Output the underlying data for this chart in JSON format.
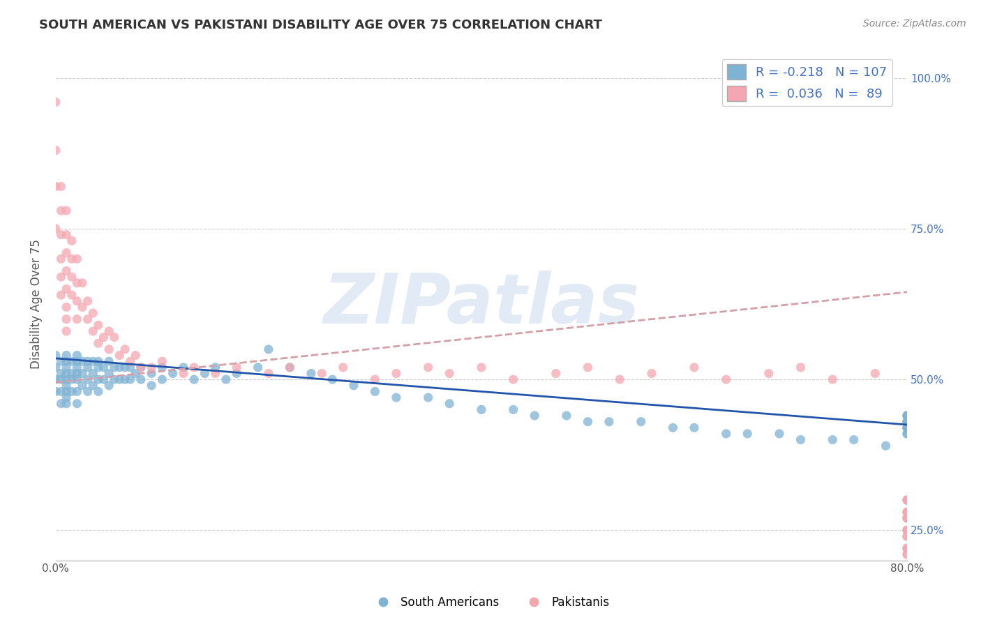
{
  "title": "SOUTH AMERICAN VS PAKISTANI DISABILITY AGE OVER 75 CORRELATION CHART",
  "source": "Source: ZipAtlas.com",
  "ylabel": "Disability Age Over 75",
  "xlim": [
    0.0,
    0.8
  ],
  "ylim": [
    0.2,
    1.05
  ],
  "xtick_vals": [
    0.0,
    0.1,
    0.2,
    0.3,
    0.4,
    0.5,
    0.6,
    0.7,
    0.8
  ],
  "xtick_labels": [
    "0.0%",
    "",
    "",
    "",
    "",
    "",
    "",
    "",
    "80.0%"
  ],
  "ytick_vals": [
    0.25,
    0.5,
    0.75,
    1.0
  ],
  "ytick_labels": [
    "25.0%",
    "50.0%",
    "75.0%",
    "100.0%"
  ],
  "blue_dot_color": "#7FB3D3",
  "pink_dot_color": "#F4A7B0",
  "trend_blue_color": "#2255AA",
  "trend_pink_color": "#D4A0A8",
  "legend_text_color": "#4472C4",
  "legend_label_blue": "South Americans",
  "legend_label_pink": "Pakistanis",
  "watermark": "ZIPatlas",
  "background_color": "#ffffff",
  "grid_color": "#cccccc",
  "sa_x": [
    0.0,
    0.0,
    0.0,
    0.0,
    0.005,
    0.005,
    0.005,
    0.005,
    0.005,
    0.01,
    0.01,
    0.01,
    0.01,
    0.01,
    0.01,
    0.01,
    0.01,
    0.01,
    0.015,
    0.015,
    0.015,
    0.015,
    0.02,
    0.02,
    0.02,
    0.02,
    0.02,
    0.02,
    0.02,
    0.025,
    0.025,
    0.025,
    0.03,
    0.03,
    0.03,
    0.03,
    0.035,
    0.035,
    0.035,
    0.04,
    0.04,
    0.04,
    0.04,
    0.045,
    0.045,
    0.05,
    0.05,
    0.05,
    0.055,
    0.055,
    0.06,
    0.06,
    0.065,
    0.065,
    0.07,
    0.07,
    0.075,
    0.08,
    0.08,
    0.09,
    0.09,
    0.1,
    0.1,
    0.11,
    0.12,
    0.13,
    0.14,
    0.15,
    0.16,
    0.17,
    0.19,
    0.2,
    0.22,
    0.24,
    0.26,
    0.28,
    0.3,
    0.32,
    0.35,
    0.37,
    0.4,
    0.43,
    0.45,
    0.48,
    0.5,
    0.52,
    0.55,
    0.58,
    0.6,
    0.63,
    0.65,
    0.68,
    0.7,
    0.73,
    0.75,
    0.78,
    0.8,
    0.8,
    0.8,
    0.8,
    0.8,
    0.8,
    0.8,
    0.8,
    0.8,
    0.8,
    0.8
  ],
  "sa_y": [
    0.54,
    0.52,
    0.5,
    0.48,
    0.53,
    0.51,
    0.5,
    0.48,
    0.46,
    0.54,
    0.53,
    0.52,
    0.51,
    0.5,
    0.49,
    0.48,
    0.47,
    0.46,
    0.53,
    0.51,
    0.5,
    0.48,
    0.54,
    0.53,
    0.52,
    0.51,
    0.5,
    0.48,
    0.46,
    0.53,
    0.51,
    0.49,
    0.53,
    0.52,
    0.5,
    0.48,
    0.53,
    0.51,
    0.49,
    0.53,
    0.52,
    0.5,
    0.48,
    0.52,
    0.5,
    0.53,
    0.51,
    0.49,
    0.52,
    0.5,
    0.52,
    0.5,
    0.52,
    0.5,
    0.52,
    0.5,
    0.51,
    0.52,
    0.5,
    0.51,
    0.49,
    0.52,
    0.5,
    0.51,
    0.52,
    0.5,
    0.51,
    0.52,
    0.5,
    0.51,
    0.52,
    0.55,
    0.52,
    0.51,
    0.5,
    0.49,
    0.48,
    0.47,
    0.47,
    0.46,
    0.45,
    0.45,
    0.44,
    0.44,
    0.43,
    0.43,
    0.43,
    0.42,
    0.42,
    0.41,
    0.41,
    0.41,
    0.4,
    0.4,
    0.4,
    0.39,
    0.44,
    0.43,
    0.42,
    0.41,
    0.43,
    0.44,
    0.42,
    0.41,
    0.43,
    0.44,
    0.42
  ],
  "pak_x": [
    0.0,
    0.0,
    0.0,
    0.0,
    0.005,
    0.005,
    0.005,
    0.005,
    0.005,
    0.005,
    0.01,
    0.01,
    0.01,
    0.01,
    0.01,
    0.01,
    0.01,
    0.01,
    0.015,
    0.015,
    0.015,
    0.015,
    0.02,
    0.02,
    0.02,
    0.02,
    0.025,
    0.025,
    0.03,
    0.03,
    0.035,
    0.035,
    0.04,
    0.04,
    0.045,
    0.05,
    0.05,
    0.055,
    0.06,
    0.065,
    0.07,
    0.075,
    0.08,
    0.09,
    0.1,
    0.12,
    0.13,
    0.15,
    0.17,
    0.2,
    0.22,
    0.25,
    0.27,
    0.3,
    0.32,
    0.35,
    0.37,
    0.4,
    0.43,
    0.47,
    0.5,
    0.53,
    0.56,
    0.6,
    0.63,
    0.67,
    0.7,
    0.73,
    0.77,
    0.8,
    0.8,
    0.8,
    0.8,
    0.8,
    0.8,
    0.8,
    0.8,
    0.8,
    0.8,
    0.8,
    0.8,
    0.8,
    0.8,
    0.8,
    0.8,
    0.8,
    0.8,
    0.8,
    0.8
  ],
  "pak_y": [
    0.96,
    0.88,
    0.82,
    0.75,
    0.82,
    0.78,
    0.74,
    0.7,
    0.67,
    0.64,
    0.78,
    0.74,
    0.71,
    0.68,
    0.65,
    0.62,
    0.6,
    0.58,
    0.73,
    0.7,
    0.67,
    0.64,
    0.7,
    0.66,
    0.63,
    0.6,
    0.66,
    0.62,
    0.63,
    0.6,
    0.61,
    0.58,
    0.59,
    0.56,
    0.57,
    0.58,
    0.55,
    0.57,
    0.54,
    0.55,
    0.53,
    0.54,
    0.52,
    0.52,
    0.53,
    0.51,
    0.52,
    0.51,
    0.52,
    0.51,
    0.52,
    0.51,
    0.52,
    0.5,
    0.51,
    0.52,
    0.51,
    0.52,
    0.5,
    0.51,
    0.52,
    0.5,
    0.51,
    0.52,
    0.5,
    0.51,
    0.52,
    0.5,
    0.51,
    0.3,
    0.28,
    0.25,
    0.22,
    0.3,
    0.27,
    0.24,
    0.21,
    0.28,
    0.25,
    0.22,
    0.3,
    0.27,
    0.24,
    0.21,
    0.28,
    0.25,
    0.22,
    0.3,
    0.27
  ],
  "blue_trend_x0": 0.0,
  "blue_trend_y0": 0.535,
  "blue_trend_x1": 0.8,
  "blue_trend_y1": 0.425,
  "pink_trend_x0": 0.0,
  "pink_trend_y0": 0.495,
  "pink_trend_x1": 0.8,
  "pink_trend_y1": 0.645
}
